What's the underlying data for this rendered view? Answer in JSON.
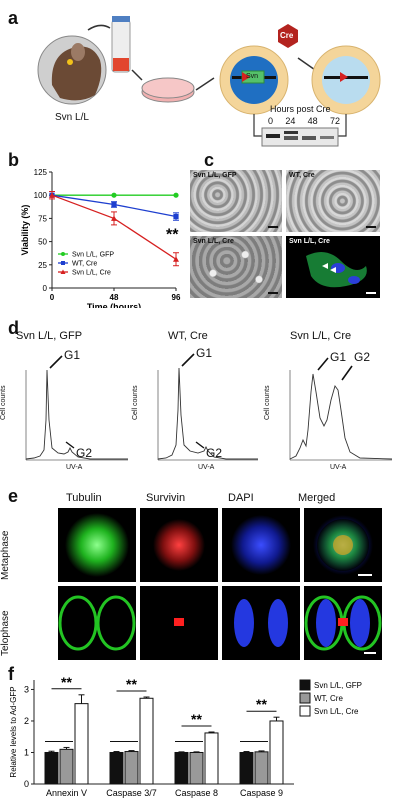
{
  "panels": {
    "a": {
      "letter": "a",
      "mouse_label": "Svn L/L",
      "cre_label": "Cre",
      "svn_label": "Svn",
      "blot_title": "Hours post Cre",
      "blot_lanes": [
        "0",
        "24",
        "48",
        "72"
      ]
    },
    "b": {
      "letter": "b"
    },
    "c": {
      "letter": "c",
      "images": [
        {
          "label": "Svn L/L, GFP"
        },
        {
          "label": "WT, Cre"
        },
        {
          "label": "Svn L/L, Cre"
        },
        {
          "label": "Svn L/L, Cre"
        }
      ]
    },
    "d": {
      "letter": "d",
      "histograms": [
        {
          "title": "Svn L/L, GFP",
          "g1": "G1",
          "g2": "G2",
          "ylabel": "Cell counts",
          "xlabel": "UV-A"
        },
        {
          "title": "WT, Cre",
          "g1": "G1",
          "g2": "G2",
          "ylabel": "Cell counts",
          "xlabel": "UV-A"
        },
        {
          "title": "Svn L/L, Cre",
          "g1": "G1",
          "g2": "G2",
          "ylabel": "Cell counts",
          "xlabel": "UV-A"
        }
      ]
    },
    "e": {
      "letter": "e",
      "columns": [
        "Tubulin",
        "Survivin",
        "DAPI",
        "Merged"
      ],
      "rows": [
        "Metaphase",
        "Telophase"
      ]
    },
    "f": {
      "letter": "f"
    }
  },
  "chart_data": [
    {
      "type": "line",
      "panel": "b",
      "ylabel": "Viability (%)",
      "xlabel": "Time (hours)",
      "x": [
        0,
        48,
        96
      ],
      "xticks": [
        "0",
        "48",
        "96"
      ],
      "yticks": [
        "0",
        "25",
        "50",
        "75",
        "100",
        "125"
      ],
      "ylim": [
        0,
        125
      ],
      "annotation": "**",
      "legend_position": "lower-left",
      "series": [
        {
          "name": "Svn L/L, GFP",
          "values": [
            100,
            100,
            100
          ],
          "error": [
            0,
            0,
            0
          ],
          "color": "#22cc22"
        },
        {
          "name": "WT, Cre",
          "values": [
            100,
            90,
            77
          ],
          "error": [
            0,
            3,
            4
          ],
          "color": "#1e3fcf"
        },
        {
          "name": "Svn L/L, Cre",
          "values": [
            100,
            75,
            31
          ],
          "error": [
            4,
            7,
            7
          ],
          "color": "#d62020"
        }
      ]
    },
    {
      "type": "bar",
      "panel": "f",
      "ylabel": "Relative levels to Ad-GFP",
      "categories": [
        "Annexin V",
        "Caspase 3/7",
        "Caspase 8",
        "Caspase 9"
      ],
      "yticks": [
        "0",
        "1",
        "2",
        "3"
      ],
      "ylim": [
        0,
        3.3
      ],
      "annotation": "**",
      "legend_position": "top-right",
      "series": [
        {
          "name": "Svn L/L, GFP",
          "values": [
            1.0,
            1.0,
            1.0,
            1.0
          ],
          "error": [
            0.04,
            0.03,
            0.02,
            0.03
          ],
          "color": "#111111"
        },
        {
          "name": "WT, Cre",
          "values": [
            1.1,
            1.03,
            1.0,
            1.02
          ],
          "error": [
            0.06,
            0.03,
            0.02,
            0.03
          ],
          "color": "#999999"
        },
        {
          "name": "Svn L/L, Cre",
          "values": [
            2.55,
            2.72,
            1.62,
            2.0
          ],
          "error": [
            0.28,
            0.04,
            0.03,
            0.12
          ],
          "color": "#ffffff"
        }
      ]
    }
  ]
}
